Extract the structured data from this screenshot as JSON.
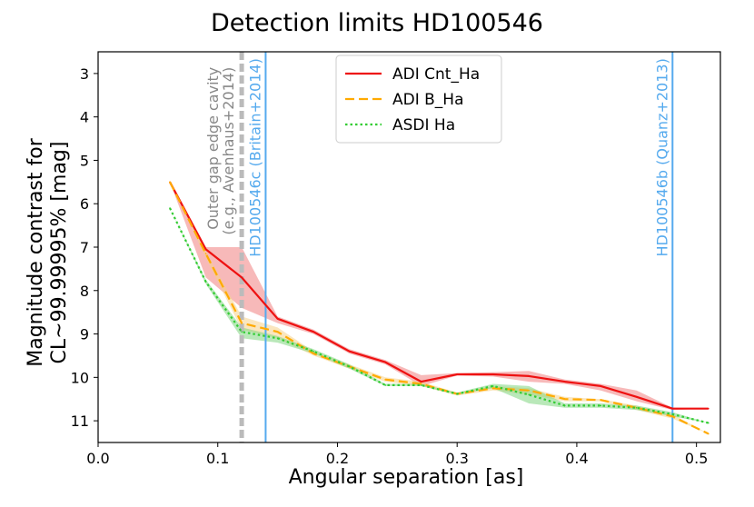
{
  "chart_data": {
    "type": "line",
    "title": "Detection limits HD100546",
    "xlabel": "Angular separation [as]",
    "ylabel_lines": [
      "Magnitude contrast for",
      "CL~99.99995% [mag]"
    ],
    "xlim": [
      0.0,
      0.52
    ],
    "ylim": [
      11.5,
      2.5
    ],
    "y_inverted": true,
    "grid": false,
    "legend_position": "top-center",
    "xticks": [
      {
        "v": 0.0,
        "label": "0.0"
      },
      {
        "v": 0.1,
        "label": "0.1"
      },
      {
        "v": 0.2,
        "label": "0.2"
      },
      {
        "v": 0.3,
        "label": "0.3"
      },
      {
        "v": 0.4,
        "label": "0.4"
      },
      {
        "v": 0.5,
        "label": "0.5"
      }
    ],
    "yticks": [
      {
        "v": 3,
        "label": "3"
      },
      {
        "v": 4,
        "label": "4"
      },
      {
        "v": 5,
        "label": "5"
      },
      {
        "v": 6,
        "label": "6"
      },
      {
        "v": 7,
        "label": "7"
      },
      {
        "v": 8,
        "label": "8"
      },
      {
        "v": 9,
        "label": "9"
      },
      {
        "v": 10,
        "label": "10"
      },
      {
        "v": 11,
        "label": "11"
      }
    ],
    "series": [
      {
        "name": "ADI Cnt_Ha",
        "color": "#ee1111",
        "dash": "solid",
        "x": [
          0.06,
          0.09,
          0.12,
          0.15,
          0.18,
          0.21,
          0.24,
          0.27,
          0.3,
          0.33,
          0.36,
          0.39,
          0.42,
          0.45,
          0.48,
          0.51
        ],
        "y": [
          5.5,
          7.05,
          7.7,
          8.65,
          8.95,
          9.4,
          9.65,
          10.1,
          9.93,
          9.93,
          9.97,
          10.1,
          10.2,
          10.45,
          10.72,
          10.72
        ],
        "band_low": [
          5.5,
          7.0,
          7.0,
          8.6,
          8.9,
          9.35,
          9.6,
          9.95,
          9.9,
          9.88,
          9.85,
          10.05,
          10.15,
          10.3,
          10.7,
          10.72
        ],
        "band_high": [
          5.5,
          7.7,
          8.4,
          8.75,
          9.0,
          9.45,
          9.7,
          10.2,
          9.96,
          9.98,
          10.1,
          10.15,
          10.3,
          10.55,
          10.75,
          10.72
        ],
        "band_color": "#f08080"
      },
      {
        "name": "ADI B_Ha",
        "color": "#ffaa00",
        "dash": "dashed",
        "x": [
          0.06,
          0.09,
          0.12,
          0.15,
          0.18,
          0.21,
          0.24,
          0.27,
          0.3,
          0.33,
          0.36,
          0.39,
          0.42,
          0.45,
          0.48,
          0.51
        ],
        "y": [
          5.5,
          7.15,
          8.75,
          8.95,
          9.45,
          9.75,
          10.05,
          10.15,
          10.38,
          10.25,
          10.3,
          10.5,
          10.52,
          10.7,
          10.9,
          11.3
        ],
        "band_low": [
          5.5,
          7.1,
          8.6,
          8.85,
          9.4,
          9.7,
          10.0,
          10.1,
          10.35,
          10.2,
          10.25,
          10.45,
          10.5,
          10.65,
          10.85,
          11.3
        ],
        "band_high": [
          5.5,
          7.25,
          8.9,
          9.1,
          9.5,
          9.8,
          10.1,
          10.2,
          10.42,
          10.3,
          10.4,
          10.55,
          10.55,
          10.75,
          10.95,
          11.3
        ],
        "band_color": "#f5d28a"
      },
      {
        "name": "ASDI Ha",
        "color": "#33cc33",
        "dash": "dotted",
        "x": [
          0.06,
          0.09,
          0.12,
          0.15,
          0.18,
          0.21,
          0.24,
          0.27,
          0.3,
          0.33,
          0.36,
          0.39,
          0.42,
          0.45,
          0.48,
          0.51
        ],
        "y": [
          6.1,
          7.8,
          8.95,
          9.1,
          9.4,
          9.75,
          10.18,
          10.18,
          10.38,
          10.2,
          10.4,
          10.65,
          10.65,
          10.7,
          10.85,
          11.05
        ],
        "band_low": [
          6.1,
          7.75,
          8.85,
          9.05,
          9.35,
          9.7,
          10.15,
          10.15,
          10.35,
          10.15,
          10.2,
          10.6,
          10.6,
          10.65,
          10.8,
          11.05
        ],
        "band_high": [
          6.1,
          7.85,
          9.1,
          9.2,
          9.45,
          9.8,
          10.2,
          10.2,
          10.4,
          10.25,
          10.6,
          10.7,
          10.7,
          10.75,
          10.9,
          11.05
        ],
        "band_color": "#7fd67f"
      }
    ],
    "vlines": [
      {
        "x": 0.12,
        "color": "#bbbbbb",
        "style": "dashed-thick",
        "label": "Outer gap edge cavity\n(e.g., Avenhaus+2014)",
        "label_color": "#888888",
        "label_top_y": 2.85
      },
      {
        "x": 0.14,
        "color": "#55aaee",
        "style": "solid",
        "label": "HD100546c (Britain+2014)",
        "label_color": "#55aaee",
        "label_top_y": 2.65
      },
      {
        "x": 0.48,
        "color": "#55aaee",
        "style": "solid",
        "label": "HD100546b (Quanz+2013)",
        "label_color": "#55aaee",
        "label_top_y": 2.65
      }
    ]
  }
}
